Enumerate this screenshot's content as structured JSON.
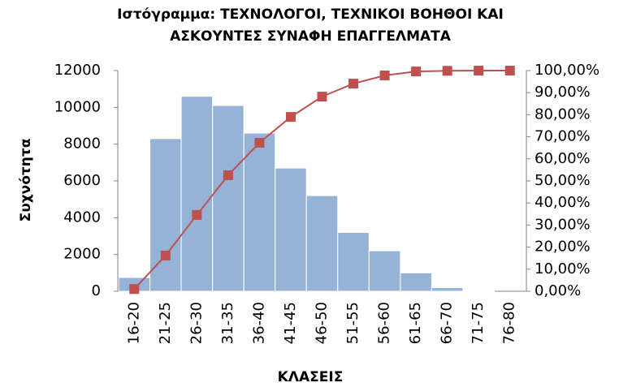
{
  "chart_data": {
    "type": "bar",
    "title": [
      "Ιστόγραμμα: ΤΕΧΝΟΛΟΓΟΙ, ΤΕΧΝΙΚΟΙ ΒΟΗΘΟΙ ΚΑΙ",
      "ΑΣΚΟΥΝΤΕΣ ΣΥΝΑΦΗ ΕΠΑΓΓΕΛΜΑΤΑ"
    ],
    "x_label": "ΚΛΑΣΕΙΣ",
    "y_label": "Συχνότητα",
    "categories": [
      "16-20",
      "21-25",
      "26-30",
      "31-35",
      "36-40",
      "41-45",
      "46-50",
      "51-55",
      "56-60",
      "61-65",
      "66-70",
      "71-75",
      "76-80"
    ],
    "series": [
      {
        "type": "bar",
        "color": "#95b3d7",
        "values": [
          750,
          8300,
          10600,
          10100,
          8600,
          6700,
          5200,
          3200,
          2200,
          1000,
          200,
          30,
          0
        ]
      },
      {
        "type": "line",
        "axis": "y2",
        "color": "#c0504d",
        "values": [
          1,
          16.2,
          34.6,
          52.6,
          67.3,
          79,
          88.2,
          94.1,
          97.8,
          99.6,
          99.9,
          100,
          100
        ]
      }
    ],
    "ylim": [
      0,
      12000
    ],
    "yticks": [
      0,
      2000,
      4000,
      6000,
      8000,
      10000,
      12000
    ],
    "y2lim": [
      0,
      100
    ],
    "y2ticks": [
      {
        "value": 0,
        "label": "0,00%"
      },
      {
        "value": 10,
        "label": "10,00%"
      },
      {
        "value": 20,
        "label": "20,00%"
      },
      {
        "value": 30,
        "label": "30,00%"
      },
      {
        "value": 40,
        "label": "40,00%"
      },
      {
        "value": 50,
        "label": "50,00%"
      },
      {
        "value": 60,
        "label": "60,00%"
      },
      {
        "value": 70,
        "label": "70,00%"
      },
      {
        "value": 80,
        "label": "80,00%"
      },
      {
        "value": 90,
        "label": "90,00%"
      },
      {
        "value": 100,
        "label": "100,00%"
      }
    ],
    "grid": false
  }
}
